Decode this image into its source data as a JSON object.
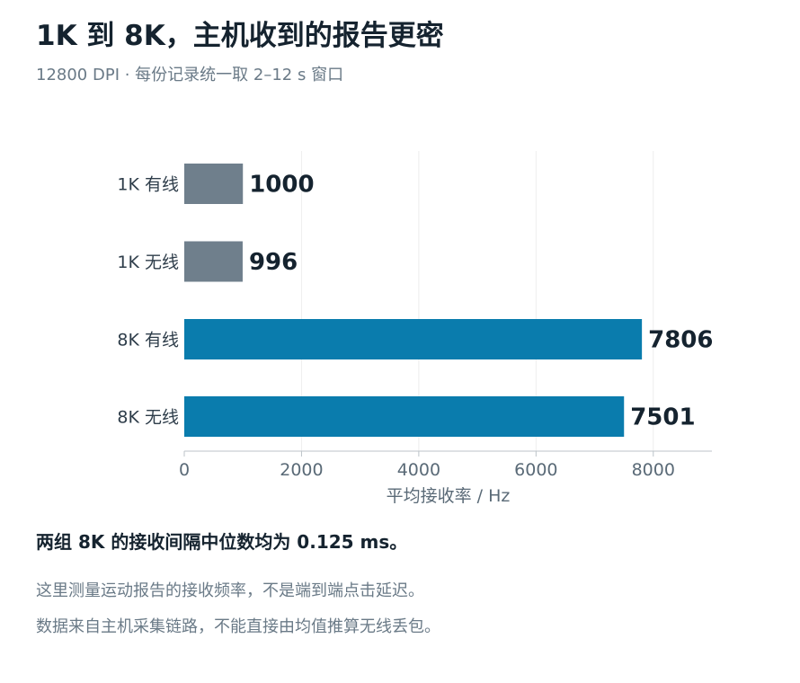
{
  "header": {
    "title": "1K 到 8K，主机收到的报告更密",
    "subtitle": "12800 DPI · 每份记录统一取 2–12 s 窗口"
  },
  "chart_data": {
    "type": "bar",
    "orientation": "horizontal",
    "categories": [
      "1K 有线",
      "1K 无线",
      "8K 有线",
      "8K 无线"
    ],
    "values": [
      1000,
      996,
      7806,
      7501
    ],
    "data_labels": [
      "1000",
      "996",
      "7806",
      "7501"
    ],
    "bar_colors": [
      "#6f7f8c",
      "#6f7f8c",
      "#0a7cad",
      "#0a7cad"
    ],
    "xlabel": "平均接收率 / Hz",
    "ylabel": "",
    "xlim": [
      0,
      9000
    ],
    "xticks": [
      0,
      2000,
      4000,
      6000,
      8000
    ],
    "xtick_labels": [
      "0",
      "2000",
      "4000",
      "6000",
      "8000"
    ],
    "grid": "vertical",
    "legend": "none"
  },
  "footer": {
    "headline": "两组 8K 的接收间隔中位数均为 0.125 ms。",
    "notes": [
      "这里测量运动报告的接收频率，不是端到端点击延迟。",
      "数据来自主机采集链路，不能直接由均值推算无线丢包。"
    ]
  },
  "colors": {
    "grid": "#eeeeee",
    "axis": "#bcc3c8",
    "tick_text": "#5a6a77",
    "category_text": "#2e3d4a",
    "value_text": "#15232f"
  }
}
